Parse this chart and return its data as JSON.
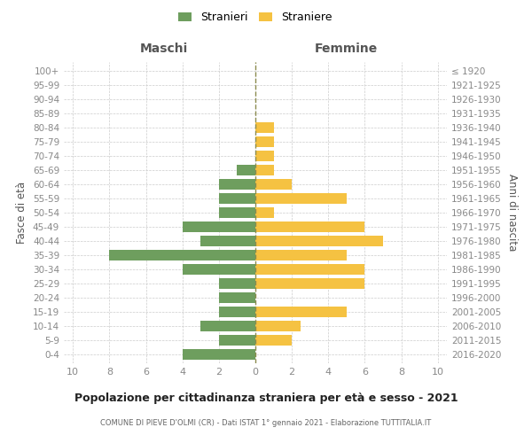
{
  "age_groups": [
    "0-4",
    "5-9",
    "10-14",
    "15-19",
    "20-24",
    "25-29",
    "30-34",
    "35-39",
    "40-44",
    "45-49",
    "50-54",
    "55-59",
    "60-64",
    "65-69",
    "70-74",
    "75-79",
    "80-84",
    "85-89",
    "90-94",
    "95-99",
    "100+"
  ],
  "birth_years": [
    "2016-2020",
    "2011-2015",
    "2006-2010",
    "2001-2005",
    "1996-2000",
    "1991-1995",
    "1986-1990",
    "1981-1985",
    "1976-1980",
    "1971-1975",
    "1966-1970",
    "1961-1965",
    "1956-1960",
    "1951-1955",
    "1946-1950",
    "1941-1945",
    "1936-1940",
    "1931-1935",
    "1926-1930",
    "1921-1925",
    "≤ 1920"
  ],
  "males": [
    4,
    2,
    3,
    2,
    2,
    2,
    4,
    8,
    3,
    4,
    2,
    2,
    2,
    1,
    0,
    0,
    0,
    0,
    0,
    0,
    0
  ],
  "females": [
    0,
    2,
    2.5,
    5,
    0,
    6,
    6,
    5,
    7,
    6,
    1,
    5,
    2,
    1,
    1,
    1,
    1,
    0,
    0,
    0,
    0
  ],
  "male_color": "#6e9e5e",
  "female_color": "#f5c242",
  "background_color": "#ffffff",
  "grid_color": "#cccccc",
  "title": "Popolazione per cittadinanza straniera per età e sesso - 2021",
  "subtitle": "COMUNE DI PIEVE D'OLMI (CR) - Dati ISTAT 1° gennaio 2021 - Elaborazione TUTTITALIA.IT",
  "xlabel_left": "Maschi",
  "xlabel_right": "Femmine",
  "ylabel_left": "Fasce di età",
  "ylabel_right": "Anni di nascita",
  "legend_male": "Stranieri",
  "legend_female": "Straniere",
  "dashed_line_color": "#8b8b4e"
}
